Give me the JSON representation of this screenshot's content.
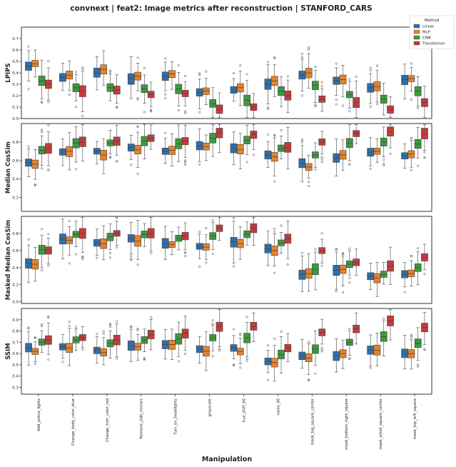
{
  "figure": {
    "title": "convnext | feat2: Image metrics after reconstruction | STANFORD_CARS",
    "xlabel": "Manipulation"
  },
  "legend": {
    "title": "Method",
    "position": "top-right",
    "entries": [
      {
        "label": "Linear",
        "color": "#2f6fa8"
      },
      {
        "label": "MLP",
        "color": "#e5832b"
      },
      {
        "label": "CNN",
        "color": "#3c9a3c"
      },
      {
        "label": "Transformer",
        "color": "#c43b3b"
      }
    ]
  },
  "chart_data": [
    {
      "type": "box",
      "ylabel": "LPIPS",
      "ylim": [
        0,
        0.8
      ],
      "yticks": [
        "0.0",
        "0.1",
        "0.2",
        "0.3",
        "0.4",
        "0.5",
        "0.6",
        "0.7"
      ],
      "categories": [
        "Add_police_lights",
        "Change_body_color_blue",
        "Change_trim_color_red",
        "Remove_side_mirrors",
        "Turn_on_headlights",
        "grayscale",
        "hue_shift_60",
        "noise_40",
        "mask_big_square_center",
        "mask_bottom_right_square",
        "mask_small_square_center",
        "mask_top_left_square"
      ],
      "series": [
        {
          "name": "Linear",
          "medians": [
            0.46,
            0.36,
            0.4,
            0.35,
            0.37,
            0.23,
            0.25,
            0.3,
            0.38,
            0.33,
            0.27,
            0.34
          ]
        },
        {
          "name": "MLP",
          "medians": [
            0.48,
            0.38,
            0.43,
            0.37,
            0.39,
            0.24,
            0.27,
            0.33,
            0.4,
            0.34,
            0.28,
            0.35
          ]
        },
        {
          "name": "CNN",
          "medians": [
            0.33,
            0.27,
            0.27,
            0.26,
            0.26,
            0.13,
            0.16,
            0.24,
            0.29,
            0.21,
            0.17,
            0.24
          ]
        },
        {
          "name": "Transformer",
          "medians": [
            0.3,
            0.24,
            0.25,
            0.21,
            0.22,
            0.08,
            0.1,
            0.2,
            0.17,
            0.14,
            0.08,
            0.14
          ]
        }
      ]
    },
    {
      "type": "box",
      "ylabel": "Median CosSim",
      "ylim": [
        0.05,
        1.0
      ],
      "yticks": [
        "0.2",
        "0.4",
        "0.6",
        "0.8"
      ],
      "categories": [
        "Add_police_lights",
        "Change_body_color_blue",
        "Change_trim_color_red",
        "Remove_side_mirrors",
        "Turn_on_headlights",
        "grayscale",
        "hue_shift_60",
        "noise_40",
        "mask_big_square_center",
        "mask_bottom_right_square",
        "mask_small_square_center",
        "mask_top_left_square"
      ],
      "series": [
        {
          "name": "Linear",
          "medians": [
            0.58,
            0.69,
            0.7,
            0.74,
            0.7,
            0.76,
            0.73,
            0.66,
            0.57,
            0.63,
            0.69,
            0.65
          ]
        },
        {
          "name": "MLP",
          "medians": [
            0.56,
            0.7,
            0.66,
            0.72,
            0.71,
            0.75,
            0.72,
            0.64,
            0.53,
            0.66,
            0.7,
            0.67
          ]
        },
        {
          "name": "CNN",
          "medians": [
            0.71,
            0.79,
            0.79,
            0.81,
            0.78,
            0.84,
            0.82,
            0.73,
            0.66,
            0.79,
            0.8,
            0.78
          ]
        },
        {
          "name": "Transformer",
          "medians": [
            0.73,
            0.8,
            0.81,
            0.84,
            0.81,
            0.9,
            0.88,
            0.74,
            0.8,
            0.89,
            0.91,
            0.89
          ]
        }
      ]
    },
    {
      "type": "box",
      "ylabel": "Masked Median CosSim",
      "ylim": [
        -0.02,
        1.0
      ],
      "yticks": [
        "0.0",
        "0.2",
        "0.4",
        "0.6",
        "0.8"
      ],
      "categories": [
        "Add_police_lights",
        "Change_body_color_blue",
        "Change_trim_color_red",
        "Remove_side_mirrors",
        "Turn_on_headlights",
        "grayscale",
        "hue_shift_60",
        "noise_40",
        "mask_big_square_center",
        "mask_bottom_right_square",
        "mask_small_square_center",
        "mask_top_left_square"
      ],
      "series": [
        {
          "name": "Linear",
          "medians": [
            0.45,
            0.74,
            0.69,
            0.74,
            0.68,
            0.65,
            0.7,
            0.62,
            0.32,
            0.37,
            0.3,
            0.32
          ]
        },
        {
          "name": "MLP",
          "medians": [
            0.44,
            0.72,
            0.68,
            0.71,
            0.67,
            0.64,
            0.68,
            0.6,
            0.33,
            0.38,
            0.28,
            0.33
          ]
        },
        {
          "name": "CNN",
          "medians": [
            0.61,
            0.79,
            0.76,
            0.79,
            0.74,
            0.77,
            0.79,
            0.69,
            0.38,
            0.44,
            0.32,
            0.4
          ]
        },
        {
          "name": "Transformer",
          "medians": [
            0.6,
            0.8,
            0.8,
            0.8,
            0.77,
            0.86,
            0.86,
            0.74,
            0.6,
            0.46,
            0.42,
            0.52
          ]
        }
      ]
    },
    {
      "type": "box",
      "ylabel": "SSIM",
      "ylim": [
        0.24,
        1.0
      ],
      "yticks": [
        "0.3",
        "0.4",
        "0.5",
        "0.6",
        "0.7",
        "0.8",
        "0.9"
      ],
      "categories": [
        "Add_police_lights",
        "Change_body_color_blue",
        "Change_trim_color_red",
        "Remove_side_mirrors",
        "Turn_on_headlights",
        "grayscale",
        "hue_shift_60",
        "noise_40",
        "mask_big_square_center",
        "mask_bottom_right_square",
        "mask_small_square_center",
        "mask_top_left_square"
      ],
      "series": [
        {
          "name": "Linear",
          "medians": [
            0.65,
            0.66,
            0.63,
            0.67,
            0.68,
            0.64,
            0.65,
            0.53,
            0.58,
            0.58,
            0.63,
            0.6
          ]
        },
        {
          "name": "MLP",
          "medians": [
            0.62,
            0.65,
            0.61,
            0.66,
            0.68,
            0.62,
            0.62,
            0.52,
            0.56,
            0.6,
            0.63,
            0.6
          ]
        },
        {
          "name": "CNN",
          "medians": [
            0.7,
            0.72,
            0.69,
            0.72,
            0.73,
            0.74,
            0.74,
            0.59,
            0.64,
            0.7,
            0.75,
            0.69
          ]
        },
        {
          "name": "Transformer",
          "medians": [
            0.72,
            0.74,
            0.72,
            0.77,
            0.78,
            0.84,
            0.84,
            0.65,
            0.79,
            0.82,
            0.89,
            0.83
          ]
        }
      ]
    }
  ]
}
